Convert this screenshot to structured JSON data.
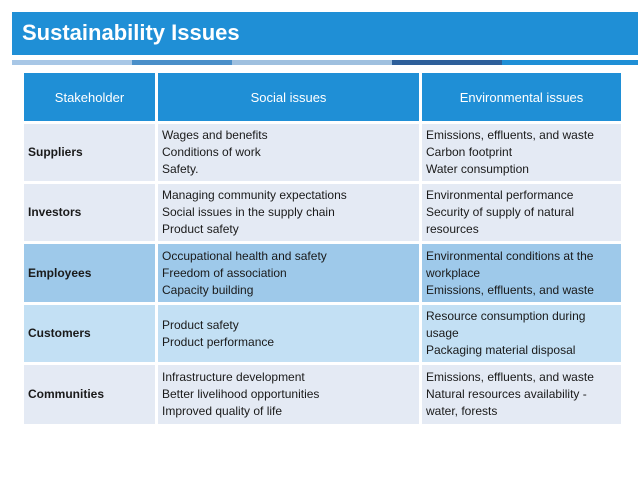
{
  "title": "Sustainability Issues",
  "headers": [
    "Stakeholder",
    "Social issues",
    "Environmental issues"
  ],
  "rows": [
    {
      "stakeholder": "Suppliers",
      "social": [
        "Wages and benefits",
        "Conditions of work",
        "Safety."
      ],
      "environmental": [
        "Emissions, effluents, and waste",
        "Carbon footprint",
        "Water consumption"
      ]
    },
    {
      "stakeholder": "Investors",
      "social": [
        "Managing community expectations",
        "Social issues in the supply chain",
        "Product safety"
      ],
      "environmental": [
        "Environmental performance",
        "Security of supply of natural",
        "resources"
      ]
    },
    {
      "stakeholder": "Employees",
      "social": [
        "Occupational health and safety",
        "Freedom of association",
        "Capacity building"
      ],
      "environmental": [
        "Environmental conditions at the",
        "workplace",
        "Emissions, effluents, and waste"
      ]
    },
    {
      "stakeholder": "Customers",
      "social": [
        "Product safety",
        "Product performance"
      ],
      "environmental": [
        "Resource consumption during",
        "usage",
        "Packaging material disposal"
      ]
    },
    {
      "stakeholder": "Communities",
      "social": [
        "Infrastructure development",
        "Better livelihood opportunities",
        "Improved quality of life"
      ],
      "environmental": [
        "Emissions, effluents, and waste",
        "Natural resources availability -",
        "water, forests"
      ]
    }
  ],
  "colors": {
    "accent": "#1f8fd6",
    "row_light": "#e4eaf4",
    "row_blue": "#c3e0f4",
    "row_dark": "#9ec9ea"
  }
}
